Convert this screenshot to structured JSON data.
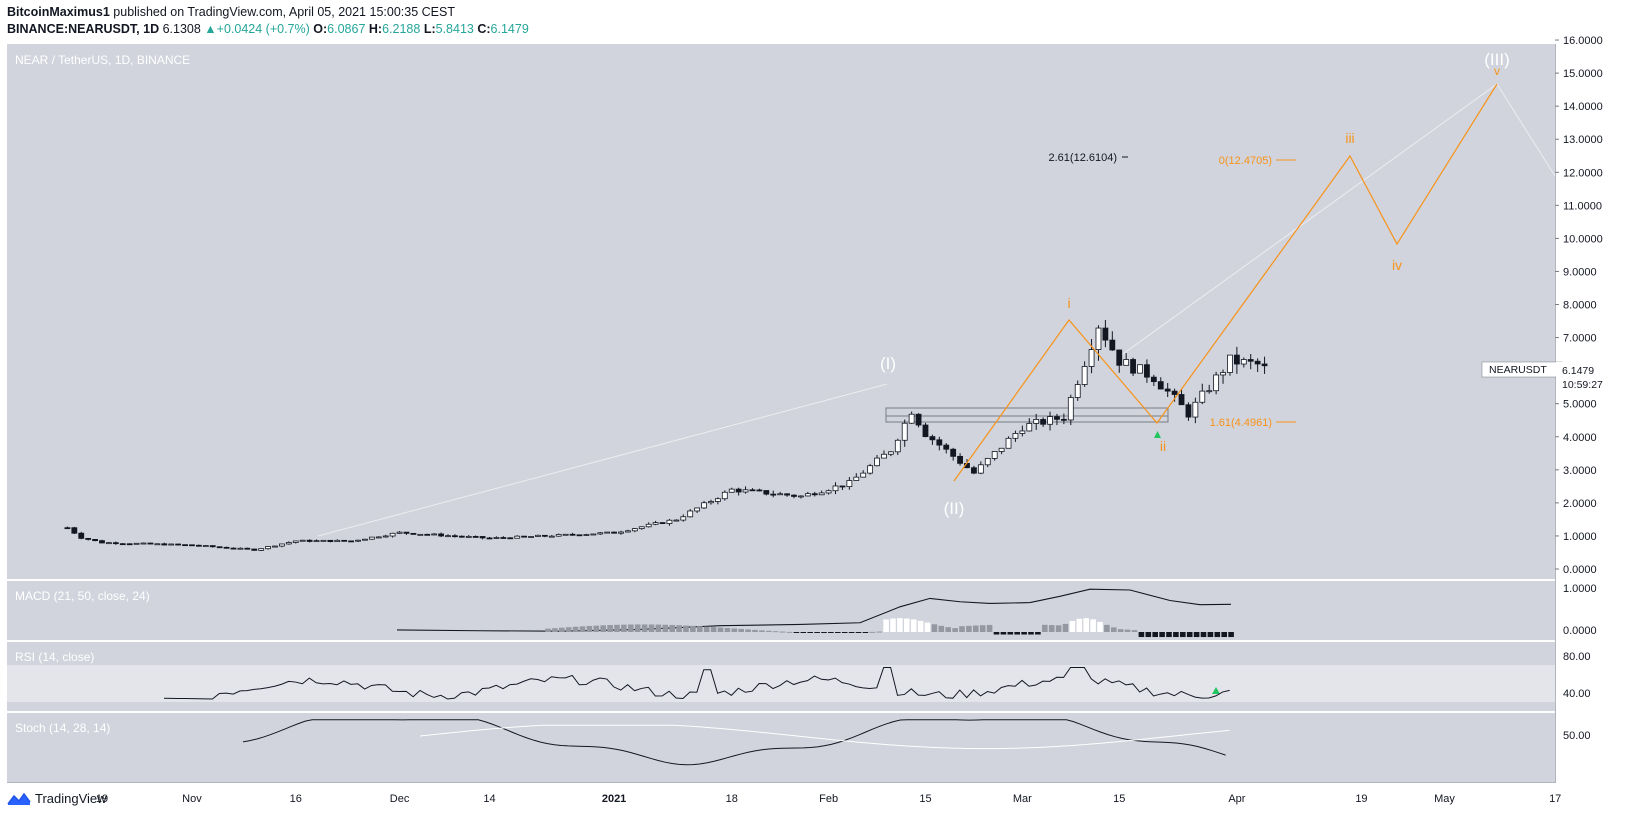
{
  "header": {
    "author": "BitcoinMaximus1",
    "published_text": "published on TradingView.com, April 05, 2021 15:00:35 CEST",
    "symbol": "BINANCE:NEARUSDT, 1D",
    "last": "6.1308",
    "change": "▲+0.0424 (+0.7%)",
    "o_label": "O:",
    "o": "6.0867",
    "h_label": "H:",
    "h": "6.2188",
    "l_label": "L:",
    "l": "5.8413",
    "c_label": "C:",
    "c": "6.1479"
  },
  "main_pane": {
    "title": "NEAR / TetherUS, 1D, BINANCE",
    "currency": "USDT",
    "price_ticks": [
      "16.0000",
      "15.0000",
      "14.0000",
      "13.0000",
      "12.0000",
      "11.0000",
      "10.0000",
      "9.0000",
      "8.0000",
      "7.0000",
      "6.0000",
      "5.0000",
      "4.0000",
      "3.0000",
      "2.0000",
      "1.0000",
      "0.0000"
    ],
    "symbol_tag": "NEARUSDT",
    "price_tag": "6.1479",
    "countdown": "10:59:27",
    "fib_labels": {
      "ext_261": "2.61(12.6104)",
      "zero": "0(12.4705)",
      "ext_161": "1.61(4.4961)"
    },
    "wave_labels": {
      "w1": "(I)",
      "w2": "(II)",
      "w3": "(III)",
      "i": "i",
      "ii": "ii",
      "iii": "iii",
      "iv": "iv",
      "v": "v"
    }
  },
  "macd_pane": {
    "title": "MACD (21, 50, close, 24)",
    "ticks": [
      "1.0000",
      "0.0000"
    ]
  },
  "rsi_pane": {
    "title": "RSI (14, close)",
    "ticks": [
      "80.00",
      "40.00"
    ]
  },
  "stoch_pane": {
    "title": "Stoch (14, 28, 14)",
    "ticks": [
      "50.00"
    ]
  },
  "time_axis": [
    "19",
    "Nov",
    "16",
    "Dec",
    "14",
    "2021",
    "18",
    "Feb",
    "15",
    "Mar",
    "15",
    "Apr",
    "19",
    "May",
    "17"
  ],
  "footer": {
    "brand": "TradingView"
  },
  "colors": {
    "pane_bg": "#d1d4dc",
    "wave_projection": "#f7931a",
    "wave_label_white": "#ffffff",
    "up_text": "#26a69a",
    "signal_arrow": "#22c55e"
  },
  "chart_data": {
    "type": "candlestick",
    "title": "NEAR / TetherUS, 1D, BINANCE",
    "unit": "USDT",
    "ylim": [
      0,
      16
    ],
    "price_series": [
      {
        "date": "2020-10-14",
        "close": 1.25
      },
      {
        "date": "2020-10-16",
        "close": 0.95
      },
      {
        "date": "2020-10-19",
        "close": 0.8
      },
      {
        "date": "2020-11-01",
        "close": 0.72
      },
      {
        "date": "2020-11-10",
        "close": 0.58
      },
      {
        "date": "2020-11-16",
        "close": 0.85
      },
      {
        "date": "2020-11-24",
        "close": 0.85
      },
      {
        "date": "2020-12-01",
        "close": 1.1
      },
      {
        "date": "2020-12-14",
        "close": 0.93
      },
      {
        "date": "2020-12-22",
        "close": 1.0
      },
      {
        "date": "2021-01-01",
        "close": 1.1
      },
      {
        "date": "2021-01-10",
        "close": 1.5
      },
      {
        "date": "2021-01-18",
        "close": 2.4
      },
      {
        "date": "2021-01-28",
        "close": 2.2
      },
      {
        "date": "2021-02-04",
        "close": 2.6
      },
      {
        "date": "2021-02-10",
        "close": 3.6
      },
      {
        "date": "2021-02-13",
        "close": 4.8
      },
      {
        "date": "2021-02-15",
        "close": 4.1
      },
      {
        "date": "2021-02-22",
        "close": 2.9
      },
      {
        "date": "2021-03-01",
        "close": 4.3
      },
      {
        "date": "2021-03-07",
        "close": 4.6
      },
      {
        "date": "2021-03-12",
        "close": 7.4
      },
      {
        "date": "2021-03-15",
        "close": 6.3
      },
      {
        "date": "2021-03-20",
        "close": 5.8
      },
      {
        "date": "2021-03-25",
        "close": 4.7
      },
      {
        "date": "2021-03-31",
        "close": 6.3
      },
      {
        "date": "2021-04-05",
        "close": 6.1479
      }
    ],
    "elliott_waves": [
      {
        "label": "(I)",
        "date": "2021-02-13",
        "price": 5.7
      },
      {
        "label": "(II)",
        "date": "2021-02-23",
        "price": 2.7
      },
      {
        "label": "i",
        "date": "2021-03-13",
        "price": 7.6
      },
      {
        "label": "ii",
        "date": "2021-03-25",
        "price": 4.5
      },
      {
        "label": "iii",
        "date": "2021-04-22",
        "price": 12.5
      },
      {
        "label": "iv",
        "date": "2021-04-29",
        "price": 10.0
      },
      {
        "label": "v",
        "date": "2021-05-15",
        "price": 14.8
      },
      {
        "label": "(III)",
        "date": "2021-05-15",
        "price": 14.8
      }
    ],
    "fib_levels": [
      {
        "label": "2.61(12.6104)",
        "value": 12.6104
      },
      {
        "label": "0(12.4705)",
        "value": 12.4705
      },
      {
        "label": "1.61(4.4961)",
        "value": 4.4961
      }
    ],
    "support_zone": [
      4.6,
      5.0
    ],
    "indicators": {
      "macd": {
        "params": "21, 50, close, 24",
        "ylim": [
          -0.1,
          1.1
        ]
      },
      "rsi": {
        "params": "14, close",
        "ylim": [
          20,
          90
        ],
        "band": [
          30,
          70
        ]
      },
      "stoch": {
        "params": "14, 28, 14"
      }
    },
    "x_ticks": [
      "19",
      "Nov",
      "16",
      "Dec",
      "14",
      "2021",
      "18",
      "Feb",
      "15",
      "Mar",
      "15",
      "Apr",
      "19",
      "May",
      "17"
    ],
    "grid": false,
    "legend": "none"
  }
}
